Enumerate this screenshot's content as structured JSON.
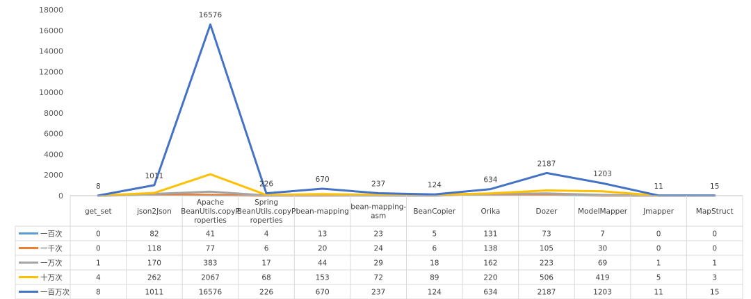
{
  "chart_data": {
    "type": "line",
    "yticks": [
      "0",
      "2000",
      "4000",
      "6000",
      "8000",
      "10000",
      "12000",
      "14000",
      "16000",
      "18000"
    ],
    "ylim": [
      0,
      18000
    ],
    "categories": [
      [
        "get_set"
      ],
      [
        "json2Json"
      ],
      [
        "Apache",
        "BeanUtils.copyP",
        "roperties"
      ],
      [
        "Spring",
        "BeanUtils.copyP",
        "roperties"
      ],
      [
        "bean-mapping"
      ],
      [
        "bean-mapping-",
        "asm"
      ],
      [
        "BeanCopier"
      ],
      [
        "Orika"
      ],
      [
        "Dozer"
      ],
      [
        "ModelMapper"
      ],
      [
        "Jmapper"
      ],
      [
        "MapStruct"
      ]
    ],
    "series": [
      {
        "name": "一百次",
        "color": "#5B9BD5",
        "values": [
          0,
          82,
          41,
          4,
          13,
          23,
          5,
          131,
          73,
          7,
          0,
          0
        ]
      },
      {
        "name": "一千次",
        "color": "#ED7D31",
        "values": [
          0,
          118,
          77,
          6,
          20,
          24,
          6,
          138,
          105,
          30,
          0,
          0
        ]
      },
      {
        "name": "一万次",
        "color": "#A5A5A5",
        "values": [
          1,
          170,
          383,
          17,
          44,
          29,
          18,
          162,
          223,
          69,
          1,
          1
        ]
      },
      {
        "name": "十万次",
        "color": "#FFC000",
        "values": [
          4,
          262,
          2067,
          68,
          153,
          72,
          89,
          220,
          506,
          419,
          5,
          3
        ]
      },
      {
        "name": "一百万次",
        "color": "#4472C4",
        "values": [
          8,
          1011,
          16576,
          226,
          670,
          237,
          124,
          634,
          2187,
          1203,
          11,
          15
        ]
      }
    ],
    "data_labels_series": 4,
    "grid": false,
    "legend": "table"
  }
}
